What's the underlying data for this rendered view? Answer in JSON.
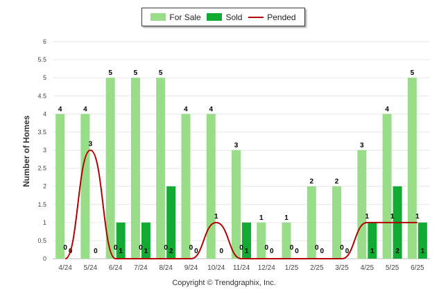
{
  "legend": {
    "for_sale": "For Sale",
    "sold": "Sold",
    "pended": "Pended"
  },
  "footer": {
    "copyright": "Copyright © Trendgraphix, Inc."
  },
  "colors": {
    "for_sale": "#99dd88",
    "sold": "#11aa33",
    "pended": "#b30000"
  },
  "chart_data": {
    "type": "bar",
    "title": "",
    "xlabel": "",
    "ylabel": "Number of Homes",
    "ylim": [
      0,
      6
    ],
    "yticks": [
      "0",
      "0.5",
      "1",
      "1.5",
      "2",
      "2.5",
      "3",
      "3.5",
      "4",
      "4.5",
      "5",
      "5.5",
      "6"
    ],
    "categories": [
      "4/24",
      "5/24",
      "6/24",
      "7/24",
      "8/24",
      "9/24",
      "10/24",
      "11/24",
      "12/24",
      "1/25",
      "2/25",
      "3/25",
      "4/25",
      "5/25",
      "6/25"
    ],
    "series": [
      {
        "name": "For Sale",
        "kind": "bar",
        "values": [
          4,
          4,
          5,
          5,
          5,
          4,
          4,
          3,
          1,
          1,
          2,
          2,
          3,
          4,
          5
        ]
      },
      {
        "name": "Sold",
        "kind": "bar",
        "values": [
          0,
          0,
          1,
          1,
          2,
          0,
          0,
          1,
          0,
          0,
          0,
          0,
          1,
          2,
          1
        ]
      },
      {
        "name": "Pended",
        "kind": "line",
        "values": [
          0,
          3,
          0,
          0,
          0,
          0,
          1,
          0,
          0,
          0,
          0,
          0,
          1,
          1,
          1
        ]
      }
    ],
    "grid": true,
    "legend_position": "top-center"
  }
}
